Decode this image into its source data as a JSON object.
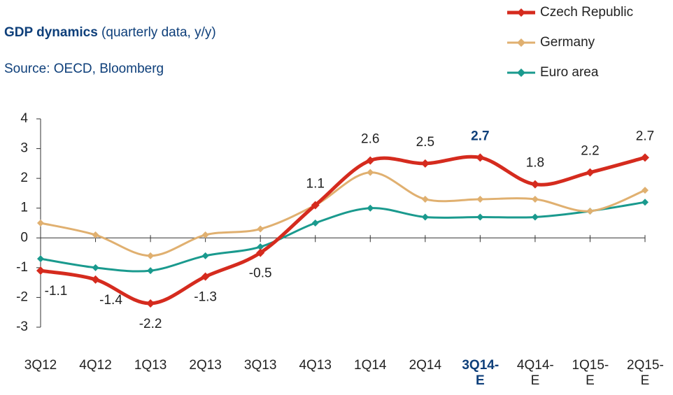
{
  "chart_data": {
    "type": "line",
    "title": "GDP dynamics",
    "title_note": "(quarterly data, y/y)",
    "subtitle": "Source: OECD, Bloomberg",
    "categories": [
      "3Q12",
      "4Q12",
      "1Q13",
      "2Q13",
      "3Q13",
      "4Q13",
      "1Q14",
      "2Q14",
      "3Q14-E",
      "4Q14-E",
      "1Q15-E",
      "2Q15-E"
    ],
    "highlight_index": 8,
    "series": [
      {
        "name": "Czech Republic",
        "color": "#d52b1e",
        "values": [
          -1.1,
          -1.4,
          -2.2,
          -1.3,
          -0.5,
          1.1,
          2.6,
          2.5,
          2.7,
          1.8,
          2.2,
          2.7
        ],
        "labels": true
      },
      {
        "name": "Germany",
        "color": "#e0b070",
        "values": [
          0.5,
          0.1,
          -0.6,
          0.1,
          0.3,
          1.1,
          2.2,
          1.3,
          1.3,
          1.3,
          0.9,
          1.6
        ]
      },
      {
        "name": "Euro area",
        "color": "#1a9a8e",
        "values": [
          -0.7,
          -1.0,
          -1.1,
          -0.6,
          -0.3,
          0.5,
          1.0,
          0.7,
          0.7,
          0.7,
          0.9,
          1.2
        ]
      }
    ],
    "ylim": [
      -3,
      4
    ],
    "yticks": [
      -3,
      -2,
      -1,
      0,
      1,
      2,
      3,
      4
    ],
    "legend": "top-right"
  }
}
